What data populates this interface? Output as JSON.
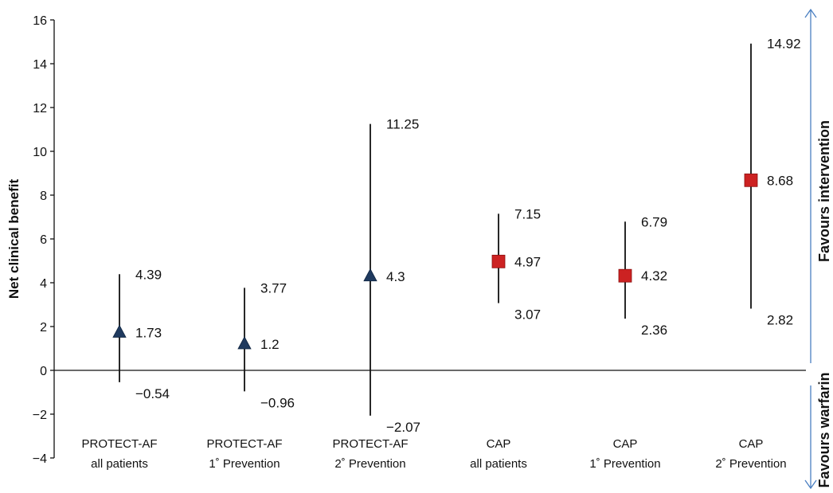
{
  "chart_data": {
    "type": "scatter",
    "title": "",
    "xlabel": "",
    "ylabel": "Net clinical benefit",
    "ylim": [
      -4,
      16
    ],
    "yticks": [
      "16",
      "14",
      "12",
      "10",
      "8",
      "6",
      "4",
      "2",
      "0",
      "−2",
      "−4"
    ],
    "grid": false,
    "categories": [
      {
        "line1": "PROTECT-AF",
        "line2": "all patients",
        "group": "PROTECT-AF",
        "marker": "triangle",
        "value": 1.73,
        "upper": 4.39,
        "lower": -0.54,
        "value_label": "1.73",
        "upper_label": "4.39",
        "lower_label": "−0.54"
      },
      {
        "line1": "PROTECT-AF",
        "line2": "1˚ Prevention",
        "group": "PROTECT-AF",
        "marker": "triangle",
        "value": 1.2,
        "upper": 3.77,
        "lower": -0.96,
        "value_label": "1.2",
        "upper_label": "3.77",
        "lower_label": "−0.96"
      },
      {
        "line1": "PROTECT-AF",
        "line2": "2˚ Prevention",
        "group": "PROTECT-AF",
        "marker": "triangle",
        "value": 4.3,
        "upper": 11.25,
        "lower": -2.07,
        "value_label": "4.3",
        "upper_label": "11.25",
        "lower_label": "−2.07"
      },
      {
        "line1": "CAP",
        "line2": "all patients",
        "group": "CAP",
        "marker": "square",
        "value": 4.97,
        "upper": 7.15,
        "lower": 3.07,
        "value_label": "4.97",
        "upper_label": "7.15",
        "lower_label": "3.07"
      },
      {
        "line1": "CAP",
        "line2": "1˚ Prevention",
        "group": "CAP",
        "marker": "square",
        "value": 4.32,
        "upper": 6.79,
        "lower": 2.36,
        "value_label": "4.32",
        "upper_label": "6.79",
        "lower_label": "2.36"
      },
      {
        "line1": "CAP",
        "line2": "2˚ Prevention",
        "group": "CAP",
        "marker": "square",
        "value": 8.68,
        "upper": 14.92,
        "lower": 2.82,
        "value_label": "8.68",
        "upper_label": "14.92",
        "lower_label": "2.82"
      }
    ],
    "annotations": {
      "favours_intervention": "Favours intervention",
      "favours_warfarin": "Favours warfarin"
    },
    "colors": {
      "PROTECT-AF": "#1f3a5f",
      "CAP": "#cc2222",
      "arrow": "#4a7fc1",
      "axis": "#111111"
    }
  }
}
